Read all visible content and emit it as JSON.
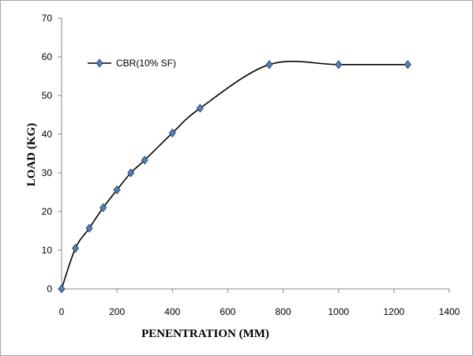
{
  "chart_data": {
    "type": "line",
    "title": "",
    "xlabel": "PENENTRATION (MM)",
    "ylabel": "LOAD (KG)",
    "xlim": [
      0,
      1400
    ],
    "ylim": [
      0,
      70
    ],
    "xticks": [
      0,
      200,
      400,
      600,
      800,
      1000,
      1200,
      1400
    ],
    "yticks": [
      0,
      10,
      20,
      30,
      40,
      50,
      60,
      70
    ],
    "grid": false,
    "legend_position": "top-left",
    "line_color": "#000000",
    "marker_color": "#4f81bd",
    "marker": "diamond",
    "smooth": true,
    "series": [
      {
        "name": "CBR(10% SF)",
        "x": [
          0,
          50,
          100,
          150,
          200,
          250,
          300,
          400,
          500,
          750,
          1000,
          1250
        ],
        "y": [
          0,
          10.5,
          15.7,
          21,
          25.6,
          30,
          33.3,
          40.3,
          46.7,
          58,
          58,
          58
        ]
      }
    ]
  }
}
